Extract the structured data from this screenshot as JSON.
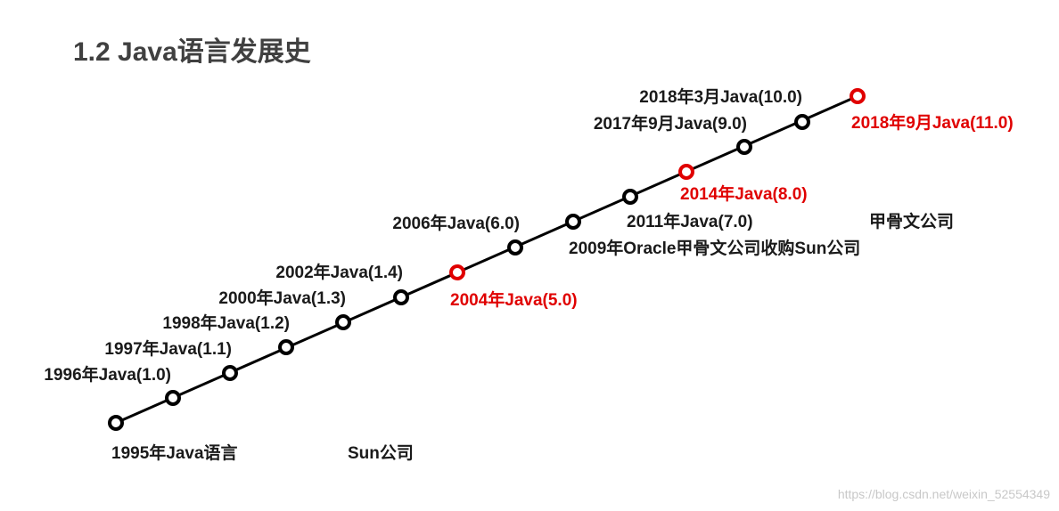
{
  "header": {
    "title": "1.2 Java语言发展史"
  },
  "nodes": [
    {
      "label": "1995年Java语言"
    },
    {
      "label": "1996年Java(1.0)"
    },
    {
      "label": "1997年Java(1.1)"
    },
    {
      "label": "1998年Java(1.2)"
    },
    {
      "label": "2000年Java(1.3)"
    },
    {
      "label": "2002年Java(1.4)"
    },
    {
      "label": "2004年Java(5.0)"
    },
    {
      "label": "2006年Java(6.0)"
    },
    {
      "label": "2009年Oracle甲骨文公司收购Sun公司"
    },
    {
      "label": "2011年Java(7.0)"
    },
    {
      "label": "2014年Java(8.0)"
    },
    {
      "label": "2017年9月Java(9.0)"
    },
    {
      "label": "2018年3月Java(10.0)"
    },
    {
      "label": "2018年9月Java(11.0)"
    }
  ],
  "companies": [
    "Sun公司",
    "甲骨文公司"
  ],
  "watermark": "https://blog.csdn.net/weixin_52554349"
}
